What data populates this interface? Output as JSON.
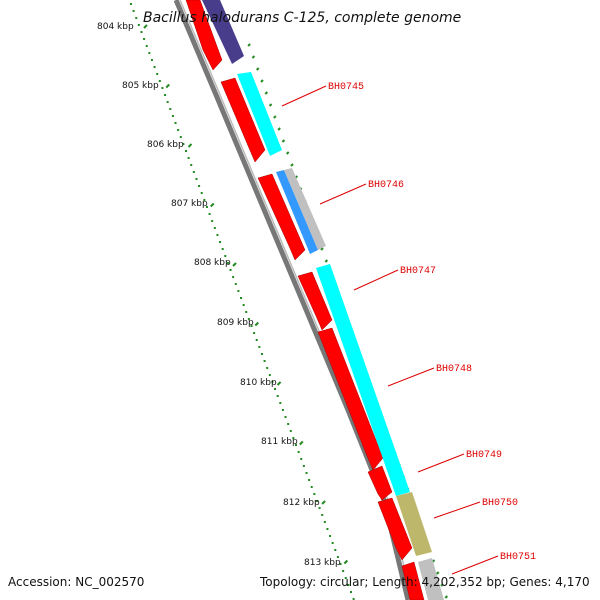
{
  "title": "Bacillus halodurans C-125, complete genome",
  "footer": {
    "accession": "Accession: NC_002570",
    "stats": "Topology: circular; Length: 4,202,352 bp; Genes: 4,170"
  },
  "ruler": {
    "labels": [
      "804 kbp",
      "805 kbp",
      "806 kbp",
      "807 kbp",
      "808 kbp",
      "809 kbp",
      "810 kbp",
      "811 kbp",
      "812 kbp",
      "813 kbp"
    ]
  },
  "gene_labels": [
    "BH0745",
    "BH0746",
    "BH0747",
    "BH0748",
    "BH0749",
    "BH0750",
    "BH0751"
  ],
  "colors": {
    "backbone": "#888888",
    "cds": "#ff0000",
    "gene_cyan": "#00ffff",
    "gene_blue": "#3399ff",
    "gene_grey": "#c0c0c0",
    "gene_olive": "#bdb76b",
    "gene_purple": "#483d8b",
    "ticks": "#228b22",
    "label": "#dd0000"
  }
}
